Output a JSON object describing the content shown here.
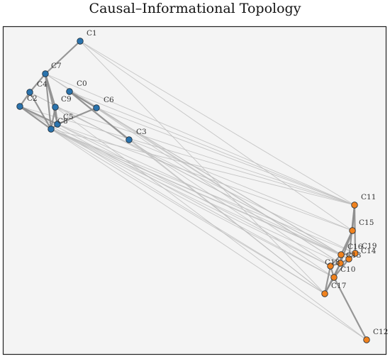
{
  "title": "Causal–Informational Topology",
  "colors": {
    "background": "#f4f4f4",
    "frame": "#222222",
    "cluster_a": "#2a73ad",
    "cluster_b": "#f0821e",
    "edge_strong": "#8c8c8c",
    "edge_weak": "#bdbdbd"
  },
  "nodes": [
    {
      "id": "C0",
      "label": "C0",
      "group": "a"
    },
    {
      "id": "C1",
      "label": "C1",
      "group": "a"
    },
    {
      "id": "C2",
      "label": "C2",
      "group": "a"
    },
    {
      "id": "C3",
      "label": "C3",
      "group": "a"
    },
    {
      "id": "C4",
      "label": "C4",
      "group": "a"
    },
    {
      "id": "C5",
      "label": "C5",
      "group": "a"
    },
    {
      "id": "C6",
      "label": "C6",
      "group": "a"
    },
    {
      "id": "C7",
      "label": "C7",
      "group": "a"
    },
    {
      "id": "C8",
      "label": "C8",
      "group": "a"
    },
    {
      "id": "C9",
      "label": "C9",
      "group": "a"
    },
    {
      "id": "C10",
      "label": "C10",
      "group": "b"
    },
    {
      "id": "C11",
      "label": "C11",
      "group": "b"
    },
    {
      "id": "C12",
      "label": "C12",
      "group": "b"
    },
    {
      "id": "C13",
      "label": "C13",
      "group": "b"
    },
    {
      "id": "C14",
      "label": "C14",
      "group": "b"
    },
    {
      "id": "C15",
      "label": "C15",
      "group": "b"
    },
    {
      "id": "C16",
      "label": "C16",
      "group": "b"
    },
    {
      "id": "C17",
      "label": "C17",
      "group": "b"
    },
    {
      "id": "C18",
      "label": "C18",
      "group": "b"
    },
    {
      "id": "C19",
      "label": "C19",
      "group": "b"
    }
  ],
  "edges_strong": [
    [
      "C1",
      "C7"
    ],
    [
      "C7",
      "C4"
    ],
    [
      "C7",
      "C9"
    ],
    [
      "C7",
      "C5"
    ],
    [
      "C7",
      "C8"
    ],
    [
      "C4",
      "C2"
    ],
    [
      "C4",
      "C8"
    ],
    [
      "C2",
      "C8"
    ],
    [
      "C2",
      "C5"
    ],
    [
      "C9",
      "C5"
    ],
    [
      "C9",
      "C8"
    ],
    [
      "C0",
      "C6"
    ],
    [
      "C0",
      "C3"
    ],
    [
      "C6",
      "C5"
    ],
    [
      "C5",
      "C8"
    ],
    [
      "C11",
      "C15"
    ],
    [
      "C11",
      "C19"
    ],
    [
      "C11",
      "C14"
    ],
    [
      "C15",
      "C16"
    ],
    [
      "C15",
      "C13"
    ],
    [
      "C16",
      "C19"
    ],
    [
      "C16",
      "C13"
    ],
    [
      "C16",
      "C18"
    ],
    [
      "C13",
      "C14"
    ],
    [
      "C13",
      "C10"
    ],
    [
      "C13",
      "C18"
    ],
    [
      "C18",
      "C17"
    ],
    [
      "C10",
      "C17"
    ],
    [
      "C10",
      "C12"
    ],
    [
      "C14",
      "C10"
    ],
    [
      "C19",
      "C14"
    ],
    [
      "C18",
      "C10"
    ],
    [
      "C17",
      "C13"
    ]
  ],
  "edges_weak": [
    [
      "C1",
      "C11"
    ],
    [
      "C1",
      "C15"
    ],
    [
      "C1",
      "C17"
    ],
    [
      "C0",
      "C11"
    ],
    [
      "C0",
      "C16"
    ],
    [
      "C0",
      "C14"
    ],
    [
      "C6",
      "C11"
    ],
    [
      "C6",
      "C13"
    ],
    [
      "C3",
      "C15"
    ],
    [
      "C3",
      "C10"
    ],
    [
      "C3",
      "C17"
    ],
    [
      "C7",
      "C11"
    ],
    [
      "C7",
      "C18"
    ],
    [
      "C7",
      "C13"
    ],
    [
      "C4",
      "C16"
    ],
    [
      "C4",
      "C14"
    ],
    [
      "C2",
      "C17"
    ],
    [
      "C2",
      "C11"
    ],
    [
      "C2",
      "C10"
    ],
    [
      "C9",
      "C11"
    ],
    [
      "C9",
      "C19"
    ],
    [
      "C5",
      "C16"
    ],
    [
      "C5",
      "C18"
    ],
    [
      "C5",
      "C15"
    ],
    [
      "C8",
      "C11"
    ],
    [
      "C8",
      "C16"
    ],
    [
      "C8",
      "C13"
    ],
    [
      "C8",
      "C14"
    ],
    [
      "C8",
      "C10"
    ],
    [
      "C8",
      "C17"
    ],
    [
      "C8",
      "C12"
    ],
    [
      "C8",
      "C18"
    ],
    [
      "C8",
      "C19"
    ],
    [
      "C0",
      "C17"
    ],
    [
      "C9",
      "C12"
    ]
  ]
}
